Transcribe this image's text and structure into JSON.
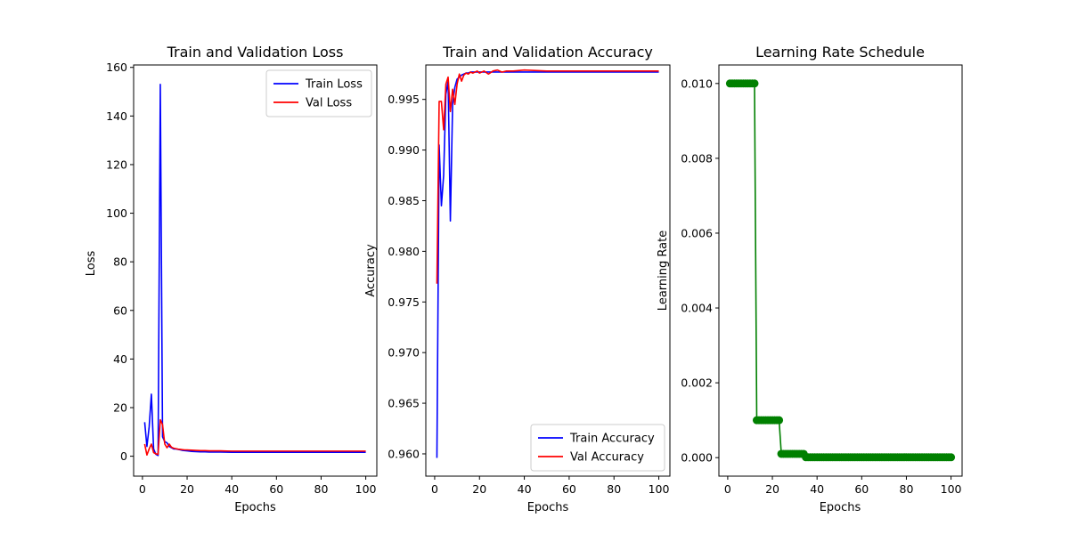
{
  "chart_data": [
    {
      "type": "line",
      "title": "Train and Validation Loss",
      "xlabel": "Epochs",
      "ylabel": "Loss",
      "xlim": [
        -3.95,
        104.95
      ],
      "ylim": [
        -8.2,
        161.0
      ],
      "xticks": [
        0,
        20,
        40,
        60,
        80,
        100
      ],
      "yticks": [
        0,
        20,
        40,
        60,
        80,
        100,
        120,
        140,
        160
      ],
      "ytick_format": "int",
      "grid": false,
      "legend": "top-right",
      "series": [
        {
          "name": "Train Loss",
          "color": "#0000ff",
          "x": [
            1,
            2,
            3,
            4,
            5,
            6,
            7,
            8,
            9,
            10,
            11,
            12,
            13,
            14,
            15,
            16,
            17,
            18,
            19,
            20,
            22,
            24,
            26,
            28,
            30,
            35,
            40,
            50,
            60,
            70,
            80,
            90,
            100
          ],
          "y": [
            14,
            4,
            12,
            25.5,
            3,
            0.8,
            0.3,
            153,
            8,
            6,
            5.5,
            4,
            3.5,
            3,
            3,
            2.8,
            2.6,
            2.4,
            2.3,
            2.2,
            2.0,
            1.9,
            1.8,
            1.8,
            1.7,
            1.7,
            1.6,
            1.6,
            1.6,
            1.6,
            1.6,
            1.6,
            1.6
          ]
        },
        {
          "name": "Val Loss",
          "color": "#ff0000",
          "x": [
            1,
            2,
            3,
            4,
            5,
            6,
            7,
            8,
            9,
            10,
            11,
            12,
            13,
            14,
            15,
            16,
            17,
            18,
            19,
            20,
            22,
            24,
            26,
            28,
            30,
            35,
            40,
            50,
            60,
            70,
            80,
            90,
            100
          ],
          "y": [
            5,
            0.5,
            3,
            5,
            1.5,
            1,
            0.8,
            15,
            13,
            5,
            3.5,
            5,
            3.7,
            3.3,
            3.1,
            2.9,
            2.8,
            2.7,
            2.6,
            2.6,
            2.5,
            2.4,
            2.3,
            2.3,
            2.2,
            2.2,
            2.1,
            2.1,
            2.1,
            2.1,
            2.1,
            2.1,
            2.1
          ]
        }
      ]
    },
    {
      "type": "line",
      "title": "Train and Validation Accuracy",
      "xlabel": "Epochs",
      "ylabel": "Accuracy",
      "xlim": [
        -3.95,
        104.95
      ],
      "ylim": [
        0.9578,
        0.9984
      ],
      "xticks": [
        0,
        20,
        40,
        60,
        80,
        100
      ],
      "yticks": [
        0.96,
        0.965,
        0.97,
        0.975,
        0.98,
        0.985,
        0.99,
        0.995
      ],
      "ytick_format": "3dp",
      "grid": false,
      "legend": "bottom-right",
      "series": [
        {
          "name": "Train Accuracy",
          "color": "#0000ff",
          "x": [
            1,
            2,
            3,
            4,
            5,
            6,
            7,
            8,
            9,
            10,
            11,
            12,
            13,
            14,
            15,
            16,
            17,
            18,
            19,
            20,
            22,
            24,
            26,
            28,
            30,
            32,
            35,
            40,
            50,
            60,
            70,
            80,
            90,
            100
          ],
          "y": [
            0.9596,
            0.9905,
            0.9845,
            0.9875,
            0.9955,
            0.9968,
            0.983,
            0.9945,
            0.9962,
            0.997,
            0.9972,
            0.9974,
            0.9975,
            0.9976,
            0.9976,
            0.9977,
            0.9977,
            0.9977,
            0.9977,
            0.9977,
            0.9977,
            0.9977,
            0.9977,
            0.9977,
            0.9977,
            0.9977,
            0.9977,
            0.9977,
            0.9977,
            0.9977,
            0.9977,
            0.9977,
            0.9977,
            0.9977
          ]
        },
        {
          "name": "Val Accuracy",
          "color": "#ff0000",
          "x": [
            1,
            2,
            3,
            4,
            5,
            6,
            7,
            8,
            9,
            10,
            11,
            12,
            13,
            14,
            15,
            16,
            17,
            18,
            19,
            20,
            22,
            24,
            26,
            28,
            30,
            32,
            35,
            40,
            50,
            60,
            70,
            80,
            90,
            100
          ],
          "y": [
            0.9768,
            0.9948,
            0.9948,
            0.992,
            0.9965,
            0.9972,
            0.9938,
            0.996,
            0.9945,
            0.9965,
            0.9975,
            0.9968,
            0.9974,
            0.9976,
            0.9975,
            0.9977,
            0.9976,
            0.9977,
            0.9978,
            0.9976,
            0.9978,
            0.9975,
            0.9978,
            0.9979,
            0.9977,
            0.9978,
            0.9978,
            0.9979,
            0.9978,
            0.9978,
            0.9978,
            0.9978,
            0.9978,
            0.9978
          ]
        }
      ]
    },
    {
      "type": "line",
      "title": "Learning Rate Schedule",
      "xlabel": "Epochs",
      "ylabel": "Learning Rate",
      "xlim": [
        -3.95,
        104.95
      ],
      "ylim": [
        -0.000495,
        0.010495
      ],
      "xticks": [
        0,
        20,
        40,
        60,
        80,
        100
      ],
      "yticks": [
        0.0,
        0.002,
        0.004,
        0.006,
        0.008,
        0.01
      ],
      "ytick_format": "3dp",
      "grid": false,
      "legend": "none",
      "series": [
        {
          "color": "#008000",
          "marker": "circle",
          "x": [
            1,
            2,
            3,
            4,
            5,
            6,
            7,
            8,
            9,
            10,
            11,
            12,
            13,
            14,
            15,
            16,
            17,
            18,
            19,
            20,
            21,
            22,
            23,
            24,
            25,
            26,
            27,
            28,
            29,
            30,
            31,
            32,
            33,
            34,
            35,
            36,
            37,
            38,
            39,
            40,
            41,
            42,
            43,
            44,
            45,
            46,
            47,
            48,
            49,
            50,
            51,
            52,
            53,
            54,
            55,
            56,
            57,
            58,
            59,
            60,
            61,
            62,
            63,
            64,
            65,
            66,
            67,
            68,
            69,
            70,
            71,
            72,
            73,
            74,
            75,
            76,
            77,
            78,
            79,
            80,
            81,
            82,
            83,
            84,
            85,
            86,
            87,
            88,
            89,
            90,
            91,
            92,
            93,
            94,
            95,
            96,
            97,
            98,
            99,
            100
          ],
          "y": [
            0.01,
            0.01,
            0.01,
            0.01,
            0.01,
            0.01,
            0.01,
            0.01,
            0.01,
            0.01,
            0.01,
            0.01,
            0.001,
            0.001,
            0.001,
            0.001,
            0.001,
            0.001,
            0.001,
            0.001,
            0.001,
            0.001,
            0.001,
            0.0001,
            0.0001,
            0.0001,
            0.0001,
            0.0001,
            0.0001,
            0.0001,
            0.0001,
            0.0001,
            0.0001,
            0.0001,
            1e-05,
            1e-05,
            1e-05,
            1e-05,
            1e-05,
            1e-05,
            1e-05,
            1e-05,
            1e-05,
            1e-05,
            1e-05,
            1e-05,
            1e-05,
            1e-05,
            1e-05,
            1e-05,
            1e-05,
            1e-05,
            1e-05,
            1e-05,
            1e-05,
            1e-05,
            1e-05,
            1e-05,
            1e-05,
            1e-05,
            1e-05,
            1e-05,
            1e-05,
            1e-05,
            1e-05,
            1e-05,
            1e-05,
            1e-05,
            1e-05,
            1e-05,
            1e-05,
            1e-05,
            1e-05,
            1e-05,
            1e-05,
            1e-05,
            1e-05,
            1e-05,
            1e-05,
            1e-05,
            1e-05,
            1e-05,
            1e-05,
            1e-05,
            1e-05,
            1e-05,
            1e-05,
            1e-05,
            1e-05,
            1e-05,
            1e-05,
            1e-05,
            1e-05,
            1e-05,
            1e-05,
            1e-05,
            1e-05,
            1e-05,
            1e-05,
            1e-05
          ]
        }
      ]
    }
  ]
}
